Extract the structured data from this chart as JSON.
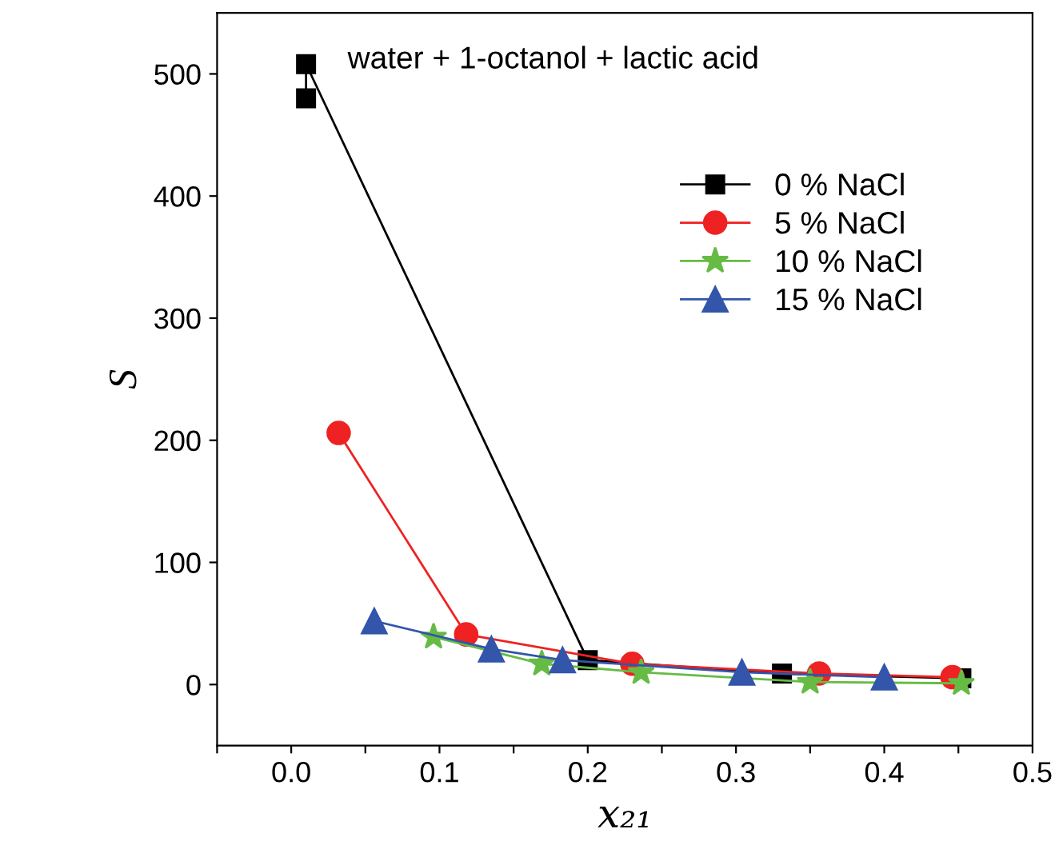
{
  "chart_data": {
    "type": "line",
    "xlabel": "x₂₁",
    "ylabel": "S",
    "annotations": [
      "water + 1-octanol + lactic acid"
    ],
    "xlim": [
      -0.05,
      0.5
    ],
    "xticks": [
      {
        "value": -0.05,
        "label": null
      },
      {
        "value": 0,
        "label": "0.0"
      },
      {
        "value": 0.05,
        "label": null
      },
      0.1,
      {
        "value": 0.15,
        "label": null
      },
      0.2,
      {
        "value": 0.25,
        "label": null
      },
      0.3,
      {
        "value": 0.35,
        "label": null
      },
      0.4,
      {
        "value": 0.45,
        "label": null
      },
      0.5
    ],
    "ylim": [
      -50,
      550
    ],
    "yticks": [
      0,
      100,
      200,
      300,
      400,
      500
    ],
    "grid": false,
    "legend": "top right",
    "series": [
      {
        "name": "0 % NaCl",
        "color": "#000000",
        "marker": "square",
        "x": [
          0.01,
          0.01,
          0.2,
          0.331,
          0.452
        ],
        "values": [
          480,
          508,
          20,
          9,
          5
        ]
      },
      {
        "name": "5 % NaCl",
        "color": "#ee2222",
        "marker": "circle",
        "x": [
          0.032,
          0.118,
          0.23,
          0.356,
          0.446
        ],
        "values": [
          206,
          41,
          17,
          9,
          6
        ]
      },
      {
        "name": "10 % NaCl",
        "color": "#66bb44",
        "marker": "star",
        "x": [
          0.096,
          0.169,
          0.236,
          0.35,
          0.452
        ],
        "values": [
          39,
          17,
          10,
          2,
          1
        ]
      },
      {
        "name": "15 % NaCl",
        "color": "#3355aa",
        "marker": "triangle",
        "x": [
          0.056,
          0.135,
          0.183,
          0.304,
          0.4
        ],
        "values": [
          52,
          29,
          20,
          10,
          6
        ]
      }
    ]
  }
}
